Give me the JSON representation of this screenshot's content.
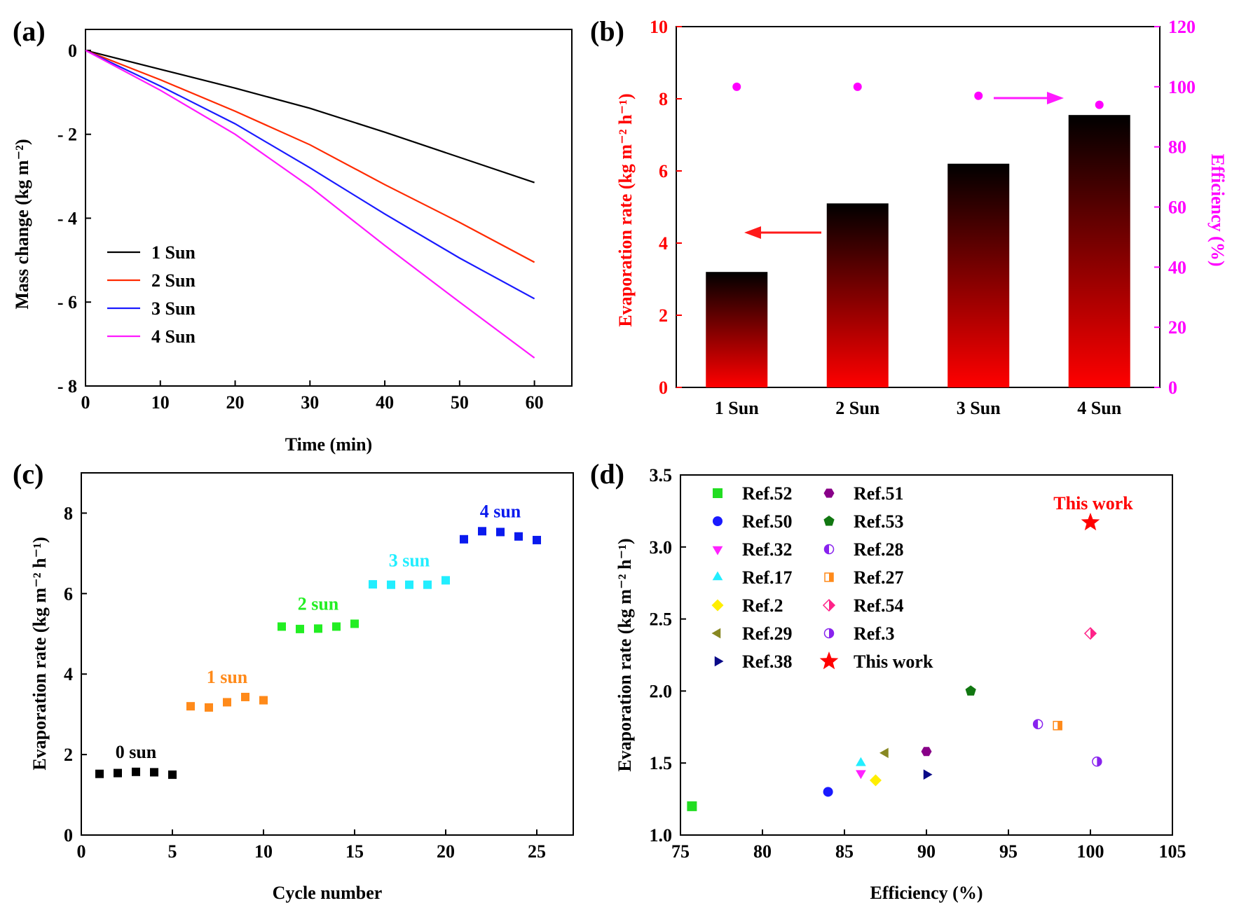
{
  "chart_data": [
    {
      "id": "a",
      "type": "line",
      "panel_label": "(a)",
      "xlabel": "Time (min)",
      "ylabel": "Mass change (kg m⁻²)",
      "xlim": [
        0,
        65
      ],
      "ylim": [
        -8,
        0.5
      ],
      "xticks": [
        0,
        10,
        20,
        30,
        40,
        50,
        60
      ],
      "yticks": [
        0,
        -2,
        -4,
        -6,
        -8
      ],
      "ytick_labels": [
        "0",
        "- 2",
        "- 4",
        "- 6",
        "- 8"
      ],
      "legend_position": "lower-left",
      "series": [
        {
          "name": "1 Sun",
          "color": "#000000",
          "x": [
            0,
            10,
            20,
            30,
            40,
            50,
            60
          ],
          "values": [
            0,
            -0.45,
            -0.9,
            -1.38,
            -1.95,
            -2.55,
            -3.15
          ]
        },
        {
          "name": "2 Sun",
          "color": "#ff2a00",
          "x": [
            0,
            10,
            20,
            30,
            40,
            50,
            60
          ],
          "values": [
            0,
            -0.7,
            -1.45,
            -2.25,
            -3.2,
            -4.1,
            -5.05
          ]
        },
        {
          "name": "3 Sun",
          "color": "#1a1aff",
          "x": [
            0,
            10,
            20,
            30,
            40,
            50,
            60
          ],
          "values": [
            0,
            -0.85,
            -1.75,
            -2.8,
            -3.9,
            -4.95,
            -5.92
          ]
        },
        {
          "name": "4 Sun",
          "color": "#ff19ff",
          "x": [
            0,
            10,
            20,
            30,
            40,
            50,
            60
          ],
          "values": [
            0,
            -0.95,
            -2.0,
            -3.25,
            -4.65,
            -6.0,
            -7.33
          ]
        }
      ]
    },
    {
      "id": "b",
      "type": "bar",
      "panel_label": "(b)",
      "categories": [
        "1 Sun",
        "2 Sun",
        "3 Sun",
        "4 Sun"
      ],
      "ylabel": "Evaporation rate (kg m⁻² h⁻¹)",
      "ylabel_color": "#ff0000",
      "ylim": [
        0,
        10
      ],
      "yticks": [
        0,
        2,
        4,
        6,
        8,
        10
      ],
      "bar_color_top": "#000000",
      "bar_color_bottom": "#ff0000",
      "values": [
        3.2,
        5.1,
        6.2,
        7.55
      ],
      "y2label": "Efficiency (%)",
      "y2label_color": "#ff00ff",
      "y2lim": [
        0,
        120
      ],
      "y2ticks": [
        0,
        20,
        40,
        60,
        80,
        100,
        120
      ],
      "efficiency": [
        100,
        100,
        97,
        94
      ]
    },
    {
      "id": "c",
      "type": "scatter",
      "panel_label": "(c)",
      "xlabel": "Cycle number",
      "ylabel": "Evaporation rate (kg m⁻² h⁻¹)",
      "xlim": [
        0,
        27
      ],
      "ylim": [
        0,
        9
      ],
      "xticks": [
        0,
        5,
        10,
        15,
        20,
        25
      ],
      "yticks": [
        0,
        2,
        4,
        6,
        8
      ],
      "series": [
        {
          "name": "0 sun",
          "color": "#000000",
          "x": [
            1,
            2,
            3,
            4,
            5
          ],
          "values": [
            1.52,
            1.54,
            1.57,
            1.56,
            1.5
          ]
        },
        {
          "name": "1 sun",
          "color": "#ff8a1a",
          "x": [
            6,
            7,
            8,
            9,
            10
          ],
          "values": [
            3.2,
            3.17,
            3.3,
            3.43,
            3.35
          ]
        },
        {
          "name": "2 sun",
          "color": "#22ee22",
          "x": [
            11,
            12,
            13,
            14,
            15
          ],
          "values": [
            5.18,
            5.12,
            5.13,
            5.18,
            5.25
          ]
        },
        {
          "name": "3 sun",
          "color": "#22eeff",
          "x": [
            16,
            17,
            18,
            19,
            20
          ],
          "values": [
            6.23,
            6.22,
            6.22,
            6.22,
            6.33
          ]
        },
        {
          "name": "4 sun",
          "color": "#0a1aee",
          "x": [
            21,
            22,
            23,
            24,
            25
          ],
          "values": [
            7.35,
            7.55,
            7.53,
            7.42,
            7.33
          ]
        }
      ]
    },
    {
      "id": "d",
      "type": "scatter",
      "panel_label": "(d)",
      "xlabel": "Efficiency (%)",
      "ylabel": "Evaporation rate (kg m⁻² h⁻¹)",
      "xlim": [
        75,
        105
      ],
      "ylim": [
        1.0,
        3.5
      ],
      "xticks": [
        75,
        80,
        85,
        90,
        95,
        100,
        105
      ],
      "yticks": [
        1.0,
        1.5,
        2.0,
        2.5,
        3.0,
        3.5
      ],
      "ytick_labels": [
        "1.0",
        "1.5",
        "2.0",
        "2.5",
        "3.0",
        "3.5"
      ],
      "annotation": "This work",
      "annotation_color": "#ff0000",
      "series": [
        {
          "name": "Ref.52",
          "marker": "square",
          "color": "#22dd22",
          "x": 75.7,
          "y": 1.2
        },
        {
          "name": "Ref.50",
          "marker": "circle",
          "color": "#1a1aff",
          "x": 84.0,
          "y": 1.3
        },
        {
          "name": "Ref.32",
          "marker": "triangle-down",
          "color": "#ff22ff",
          "x": 86.0,
          "y": 1.43
        },
        {
          "name": "Ref.17",
          "marker": "triangle-up",
          "color": "#22eeff",
          "x": 86.0,
          "y": 1.5
        },
        {
          "name": "Ref.2",
          "marker": "diamond",
          "color": "#ffee00",
          "x": 86.9,
          "y": 1.38
        },
        {
          "name": "Ref.29",
          "marker": "triangle-left",
          "color": "#888822",
          "x": 87.5,
          "y": 1.57
        },
        {
          "name": "Ref.38",
          "marker": "triangle-right",
          "color": "#0a0a88",
          "x": 90.0,
          "y": 1.42
        },
        {
          "name": "Ref.51",
          "marker": "hexagon",
          "color": "#880088",
          "x": 90.0,
          "y": 1.58
        },
        {
          "name": "Ref.53",
          "marker": "pentagon",
          "color": "#117711",
          "x": 92.7,
          "y": 2.0
        },
        {
          "name": "Ref.28",
          "marker": "circle-half",
          "color": "#8822ee",
          "x": 96.8,
          "y": 1.77
        },
        {
          "name": "Ref.27",
          "marker": "square-half",
          "color": "#ff8a1a",
          "x": 98.0,
          "y": 1.76
        },
        {
          "name": "Ref.54",
          "marker": "diamond-half",
          "color": "#ff2288",
          "x": 100.0,
          "y": 2.4
        },
        {
          "name": "Ref.3",
          "marker": "circle-half-right",
          "color": "#8822ee",
          "x": 100.4,
          "y": 1.51
        },
        {
          "name": "This work",
          "marker": "star",
          "color": "#ff0000",
          "x": 100.0,
          "y": 3.17
        }
      ]
    }
  ]
}
